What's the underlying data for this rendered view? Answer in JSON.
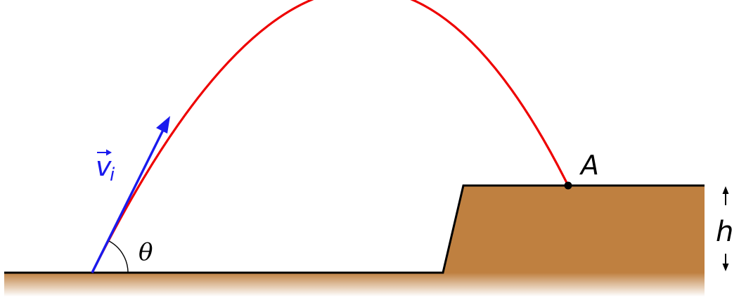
{
  "labels": {
    "velocity_symbol": "v",
    "velocity_subscript": "i",
    "angle": "θ",
    "landing_point": "A",
    "height": "h"
  },
  "colors": {
    "trajectory": "#ee0000",
    "velocity_vector": "#1a1aee",
    "ground": "#bf8040",
    "outline": "#000000",
    "background": "#ffffff"
  },
  "icons": {
    "velocity_arrowhead": "arrowhead-icon",
    "height_arrow_up": "arrow-up-icon",
    "height_arrow_down": "arrow-down-icon"
  }
}
